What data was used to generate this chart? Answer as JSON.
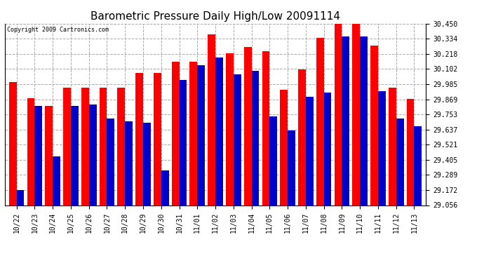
{
  "title": "Barometric Pressure Daily High/Low 20091114",
  "copyright": "Copyright 2009 Cartronics.com",
  "categories": [
    "10/22",
    "10/23",
    "10/24",
    "10/25",
    "10/26",
    "10/27",
    "10/28",
    "10/29",
    "10/30",
    "10/31",
    "11/01",
    "11/02",
    "11/03",
    "11/04",
    "11/05",
    "11/06",
    "11/07",
    "11/08",
    "11/09",
    "11/10",
    "11/11",
    "11/12",
    "11/13"
  ],
  "highs": [
    30.0,
    29.88,
    29.82,
    29.96,
    29.96,
    29.96,
    29.96,
    30.07,
    30.07,
    30.16,
    30.16,
    30.37,
    30.22,
    30.27,
    30.24,
    29.94,
    30.1,
    30.34,
    30.45,
    30.45,
    30.28,
    29.96,
    29.87
  ],
  "lows": [
    29.17,
    29.82,
    29.43,
    29.82,
    29.83,
    29.72,
    29.7,
    29.69,
    29.32,
    30.02,
    30.13,
    30.19,
    30.06,
    30.09,
    29.74,
    29.63,
    29.89,
    29.92,
    30.35,
    30.35,
    29.93,
    29.72,
    29.66
  ],
  "high_color": "#ff0000",
  "low_color": "#0000cc",
  "bg_color": "#ffffff",
  "plot_bg_color": "#ffffff",
  "grid_color": "#aaaaaa",
  "ylim_min": 29.056,
  "ylim_max": 30.45,
  "yticks": [
    29.056,
    29.172,
    29.289,
    29.405,
    29.521,
    29.637,
    29.753,
    29.869,
    29.985,
    30.102,
    30.218,
    30.334,
    30.45
  ],
  "title_fontsize": 11,
  "tick_fontsize": 7,
  "copyright_fontsize": 6,
  "bar_width": 0.42,
  "figwidth": 6.9,
  "figheight": 3.75,
  "dpi": 100
}
